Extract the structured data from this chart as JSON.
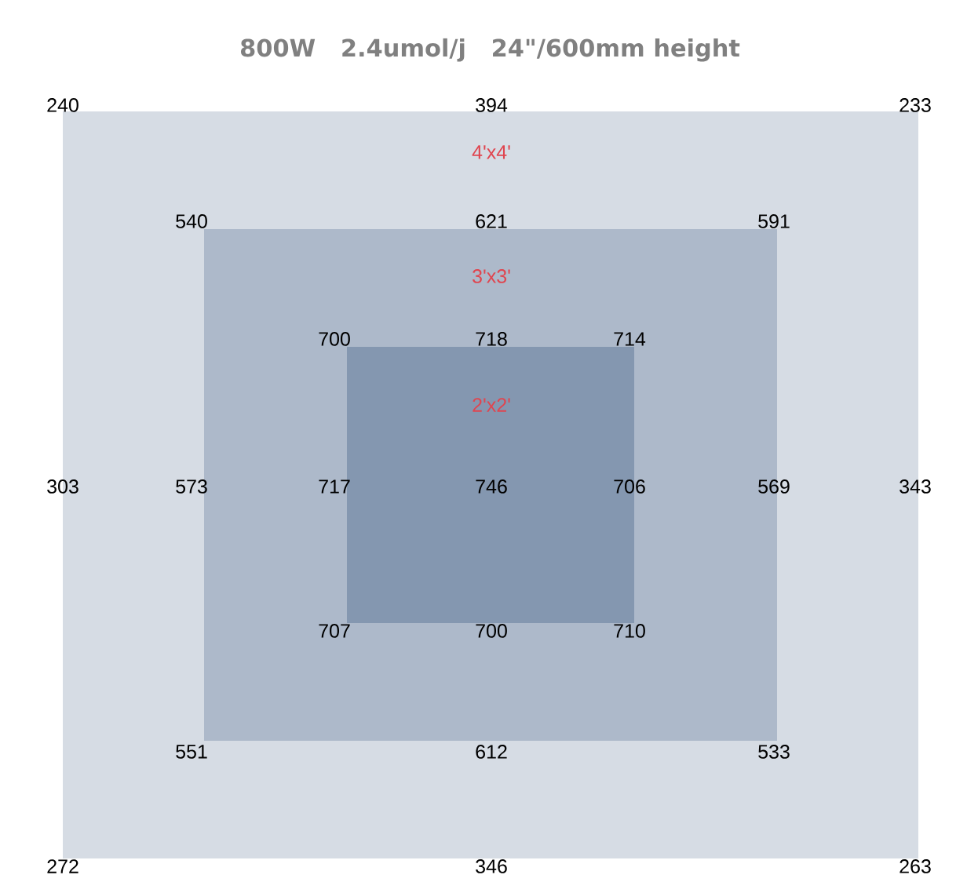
{
  "chart_data": {
    "type": "other",
    "title": "800W   2.4umol/j   24\"/600mm height",
    "data_labels": true,
    "values": [
      240,
      394,
      233,
      540,
      621,
      591,
      700,
      718,
      714,
      303,
      573,
      717,
      746,
      706,
      569,
      343,
      707,
      700,
      710,
      551,
      612,
      533,
      272,
      346,
      263
    ],
    "annotations": [
      "4'x4'",
      "3'x3'",
      "2'x2'"
    ]
  }
}
